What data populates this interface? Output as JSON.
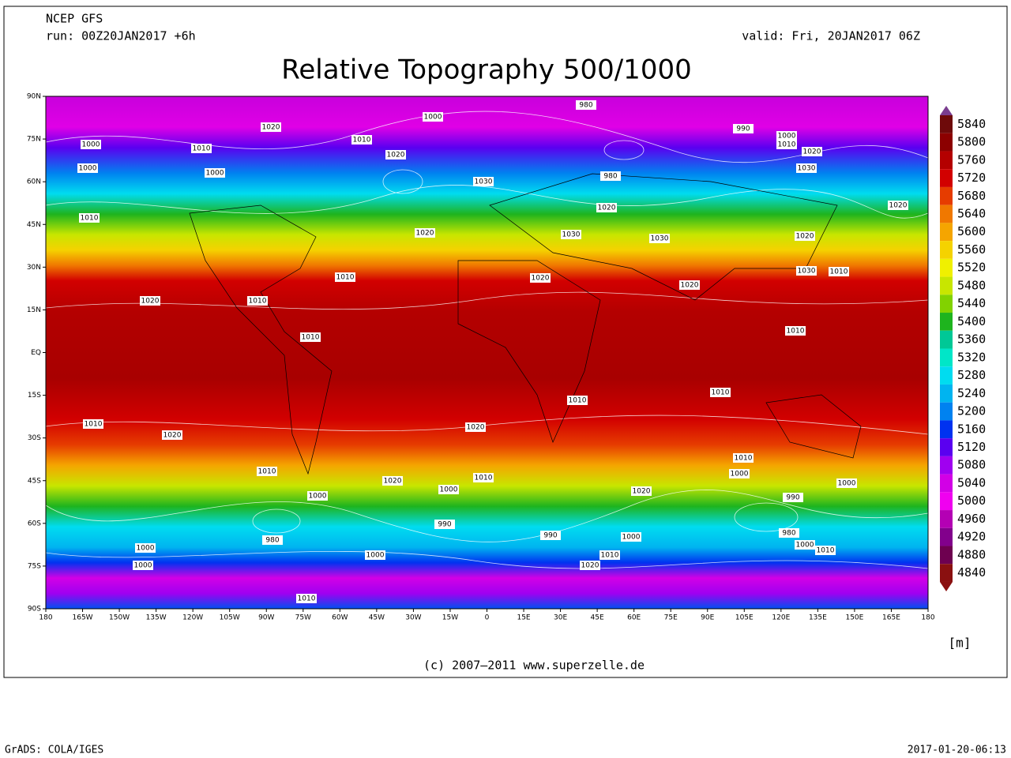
{
  "header": {
    "source": "NCEP GFS",
    "run": "run: 00Z20JAN2017 +6h",
    "valid": "valid: Fri, 20JAN2017 06Z",
    "title": "Relative Topography 500/1000"
  },
  "map": {
    "lat_labels": [
      "90N",
      "75N",
      "60N",
      "45N",
      "30N",
      "15N",
      "EQ",
      "15S",
      "30S",
      "45S",
      "60S",
      "75S",
      "90S"
    ],
    "lon_labels": [
      "180",
      "165W",
      "150W",
      "135W",
      "120W",
      "105W",
      "90W",
      "75W",
      "60W",
      "45W",
      "30W",
      "15W",
      "0",
      "15E",
      "30E",
      "45E",
      "60E",
      "75E",
      "90E",
      "105E",
      "120E",
      "135E",
      "150E",
      "165E",
      "180"
    ],
    "isobar_labels": [
      980,
      1000,
      1020,
      1010,
      1000,
      1010,
      1000,
      1000,
      990,
      1000,
      1010,
      1020,
      1030,
      1020,
      1030,
      980,
      1020,
      1010,
      1020,
      1030,
      1030,
      1020,
      1020,
      1030,
      1010,
      1010,
      1020,
      1020,
      1020,
      1010,
      1010,
      1010,
      1010,
      1010,
      1010,
      1020,
      1020,
      1010,
      1000,
      1010,
      1020,
      1010,
      1000,
      1020,
      1000,
      1000,
      990,
      990,
      990,
      1000,
      980,
      980,
      1000,
      1010,
      1000,
      1000,
      1000,
      1010,
      1020,
      1010
    ]
  },
  "colorbar": {
    "levels": [
      5840,
      5800,
      5760,
      5720,
      5680,
      5640,
      5600,
      5560,
      5520,
      5480,
      5440,
      5400,
      5360,
      5320,
      5280,
      5240,
      5200,
      5160,
      5120,
      5080,
      5040,
      5000,
      4960,
      4920,
      4880,
      4840
    ],
    "colors": [
      "#7a3d8f",
      "#6e0a0a",
      "#8c0000",
      "#b40000",
      "#d20000",
      "#e63c00",
      "#f07800",
      "#f5a500",
      "#f5d200",
      "#f0f000",
      "#c8e600",
      "#82d200",
      "#1eb41e",
      "#00c896",
      "#00e6c8",
      "#00dcf0",
      "#00b4f0",
      "#0082f0",
      "#0032f0",
      "#5a00f0",
      "#a000f0",
      "#d200e6",
      "#f000f0",
      "#b400b4",
      "#82008c",
      "#6e0050",
      "#8a1010"
    ],
    "unit": "[m]"
  },
  "footer": {
    "copyright": "(c) 2007–2011 www.superzelle.de",
    "grads": "GrADS: COLA/IGES",
    "timestamp": "2017-01-20-06:13"
  }
}
